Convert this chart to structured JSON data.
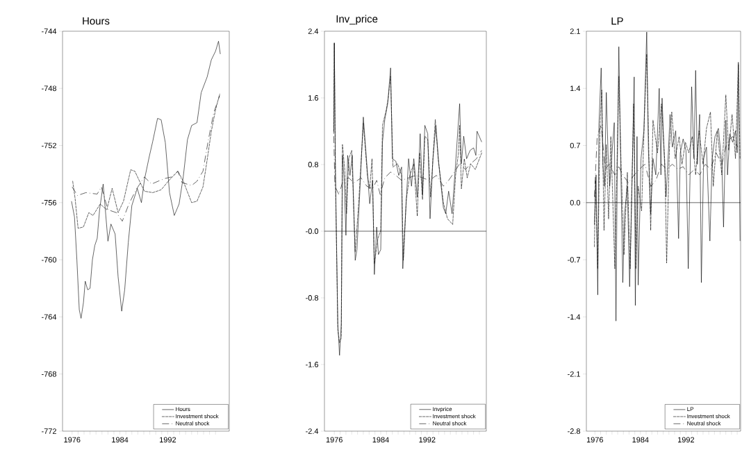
{
  "chart_data": [
    {
      "type": "line",
      "title": "Hours",
      "xlim": [
        1974.4,
        2002.3
      ],
      "ylim": [
        -772,
        -744
      ],
      "yticks": [
        -772,
        -768,
        -764,
        -760,
        -756,
        -752,
        -748,
        -744
      ],
      "xticks": [
        1976,
        {
          "value": 1977,
          "label": null
        },
        {
          "value": 1978,
          "label": null
        },
        {
          "value": 1979,
          "label": null
        },
        {
          "value": 1980,
          "label": null
        },
        {
          "value": 1981,
          "label": null
        },
        {
          "value": 1982,
          "label": null
        },
        {
          "value": 1983,
          "label": null
        },
        1984,
        {
          "value": 1985,
          "label": null
        },
        {
          "value": 1986,
          "label": null
        },
        {
          "value": 1987,
          "label": null
        },
        {
          "value": 1988,
          "label": null
        },
        {
          "value": 1989,
          "label": null
        },
        {
          "value": 1990,
          "label": null
        },
        {
          "value": 1991,
          "label": null
        },
        1992,
        {
          "value": 1993,
          "label": null
        },
        {
          "value": 1994,
          "label": null
        },
        {
          "value": 1995,
          "label": null
        },
        {
          "value": 1996,
          "label": null
        },
        {
          "value": 1997,
          "label": null
        },
        {
          "value": 1998,
          "label": null
        },
        {
          "value": 1999,
          "label": null
        },
        {
          "value": 2000,
          "label": null
        }
      ],
      "legend": "bottom right",
      "series": [
        {
          "name": "Hours",
          "color": "#000000",
          "line_style": "solid",
          "x": [
            1975.9,
            1976.4,
            1976.8,
            1977.2,
            1977.5,
            1977.9,
            1978.2,
            1978.6,
            1979.0,
            1979.4,
            1979.8,
            1980.2,
            1980.6,
            1981.2,
            1982.0,
            1982.5,
            1983.2,
            1983.7,
            1984.3,
            1984.8,
            1985.4,
            1986.0,
            1986.9,
            1987.6,
            1988.1,
            1988.9,
            1989.5,
            1990.3,
            1990.9,
            1991.6,
            1992.3,
            1993.1,
            1993.9,
            1994.6,
            1995.3,
            1996.0,
            1996.9,
            1997.6,
            1998.6,
            1999.3,
            2000.0,
            2000.5,
            2000.8
          ],
          "values": [
            -755.9,
            -757,
            -760,
            -763.5,
            -764.1,
            -763,
            -761.5,
            -762.1,
            -762,
            -760,
            -759,
            -758.5,
            -756.5,
            -754.7,
            -758.7,
            -757.5,
            -758.2,
            -761.2,
            -763.6,
            -762.1,
            -758.8,
            -756.2,
            -755.0,
            -756.0,
            -754.4,
            -752.8,
            -751.7,
            -750.1,
            -750.2,
            -751.8,
            -755.3,
            -756.9,
            -756.1,
            -754.2,
            -751.6,
            -750.6,
            -750.4,
            -748.3,
            -747.2,
            -746.0,
            -745.4,
            -744.7,
            -745.6
          ]
        },
        {
          "name": "Investment shock",
          "color": "#000000",
          "line_style": "dashed",
          "x": [
            1976.1,
            1976.5,
            1977.0,
            1977.9,
            1978.8,
            1979.5,
            1980.7,
            1981.8,
            1982.7,
            1983.7,
            1984.6,
            1985.8,
            1986.5,
            1987.4,
            1988.1,
            1989.5,
            1990.9,
            1992.3,
            1993.7,
            1994.6,
            1996.0,
            1996.9,
            1997.9,
            1998.6,
            1999.3,
            2000.0,
            2000.7
          ],
          "values": [
            -754.5,
            -755.7,
            -757.8,
            -757.7,
            -756.7,
            -756.9,
            -756.1,
            -756.5,
            -755.0,
            -756.7,
            -755.9,
            -753.7,
            -753.8,
            -754.6,
            -755.2,
            -755.3,
            -755.1,
            -754.4,
            -753.8,
            -754.5,
            -756.0,
            -755.9,
            -754.9,
            -753.0,
            -751.0,
            -749.5,
            -748.4
          ]
        },
        {
          "name": "Neutral shock",
          "color": "#000000",
          "line_style": "dashdot",
          "x": [
            1976.0,
            1976.9,
            1978.3,
            1980.2,
            1980.9,
            1982.0,
            1983.4,
            1984.4,
            1985.5,
            1986.7,
            1988.1,
            1989.3,
            1990.4,
            1991.6,
            1992.7,
            1993.7,
            1994.4,
            1996.0,
            1996.9,
            1997.9,
            1998.8,
            1999.7,
            2000.7
          ],
          "values": [
            -754.9,
            -755.5,
            -755.3,
            -755.4,
            -754.9,
            -756.5,
            -756.7,
            -757.3,
            -756.1,
            -755.1,
            -754.2,
            -754.7,
            -754.5,
            -754.3,
            -754.2,
            -753.8,
            -754.6,
            -754.8,
            -754.5,
            -753.8,
            -751.6,
            -749.7,
            -748.5
          ]
        }
      ]
    },
    {
      "type": "line",
      "title": "Inv_price",
      "xlim": [
        1974.3,
        2002.2
      ],
      "ylim": [
        -2.4,
        2.4
      ],
      "yticks": [
        -2.4,
        -1.6,
        -0.8,
        {
          "value": 0,
          "label": "-0.0"
        },
        0.8,
        1.6,
        2.4
      ],
      "xticks": [
        1976,
        {
          "value": 1977,
          "label": null
        },
        {
          "value": 1978,
          "label": null
        },
        {
          "value": 1979,
          "label": null
        },
        {
          "value": 1980,
          "label": null
        },
        {
          "value": 1981,
          "label": null
        },
        {
          "value": 1982,
          "label": null
        },
        {
          "value": 1983,
          "label": null
        },
        1984,
        {
          "value": 1985,
          "label": null
        },
        {
          "value": 1986,
          "label": null
        },
        {
          "value": 1987,
          "label": null
        },
        {
          "value": 1988,
          "label": null
        },
        {
          "value": 1989,
          "label": null
        },
        {
          "value": 1990,
          "label": null
        },
        {
          "value": 1991,
          "label": null
        },
        1992,
        {
          "value": 1993,
          "label": null
        },
        {
          "value": 1994,
          "label": null
        },
        {
          "value": 1995,
          "label": null
        },
        {
          "value": 1996,
          "label": null
        },
        {
          "value": 1997,
          "label": null
        },
        {
          "value": 1998,
          "label": null
        },
        {
          "value": 1999,
          "label": null
        },
        {
          "value": 2000,
          "label": null
        },
        {
          "value": 2001,
          "label": null
        }
      ],
      "legend": "bottom right",
      "ref_lines": [
        {
          "axis": "y",
          "value": 0,
          "color": "#000000"
        }
      ],
      "series": [
        {
          "name": "Invprice",
          "color": "#000000",
          "line_style": "solid",
          "x": [
            1975.9,
            1976.0,
            1976.2,
            1976.6,
            1976.9,
            1977.2,
            1977.4,
            1977.7,
            1978.0,
            1978.3,
            1978.7,
            1979.1,
            1979.6,
            1979.9,
            1980.4,
            1981.0,
            1981.6,
            1982.1,
            1982.6,
            1982.9,
            1983.3,
            1983.6,
            1984.0,
            1984.3,
            1984.7,
            1985.2,
            1985.7,
            1986.0,
            1986.6,
            1987.1,
            1987.6,
            1987.8,
            1988.3,
            1988.8,
            1989.3,
            1989.7,
            1990.3,
            1990.8,
            1991.2,
            1991.6,
            1992.1,
            1992.5,
            1993.0,
            1993.5,
            1994.0,
            1994.8,
            1995.2,
            1995.7,
            1996.3,
            1996.9,
            1997.6,
            1997.9,
            1998.3,
            1998.8,
            1999.4,
            2000.0,
            2000.4,
            2000.6,
            2001.4
          ],
          "values": [
            1.17,
            2.26,
            0.67,
            -1.11,
            -1.49,
            -1.11,
            0.91,
            0.61,
            -0.05,
            0.91,
            0.67,
            0.91,
            -0.35,
            -0.22,
            0.48,
            1.37,
            0.81,
            0.33,
            0.61,
            -0.52,
            0.05,
            -0.28,
            -0.22,
            1.07,
            1.34,
            1.53,
            1.96,
            0.87,
            0.84,
            0.67,
            0.77,
            -0.45,
            0.24,
            0.87,
            0.54,
            0.87,
            0.41,
            1.17,
            0.44,
            1.27,
            1.17,
            0.15,
            0.87,
            1.27,
            0.81,
            0.28,
            0.21,
            0.48,
            0.21,
            0.81,
            1.53,
            0.81,
            1.14,
            0.87,
            0.97,
            1.0,
            0.91,
            1.2,
            1.07
          ]
        },
        {
          "name": "Investment shock",
          "color": "#000000",
          "line_style": "dashed",
          "x": [
            1975.9,
            1976.0,
            1976.2,
            1976.6,
            1976.9,
            1977.2,
            1977.4,
            1977.8,
            1978.1,
            1978.5,
            1979.0,
            1979.6,
            1980.2,
            1981.0,
            1981.7,
            1982.1,
            1982.5,
            1982.9,
            1983.5,
            1984.0,
            1984.3,
            1984.9,
            1985.3,
            1985.7,
            1986.1,
            1986.9,
            1987.6,
            1987.9,
            1988.4,
            1989.0,
            1989.7,
            1990.3,
            1990.7,
            1991.2,
            1991.6,
            1992.1,
            1992.6,
            1993.4,
            1993.9,
            1994.8,
            1995.5,
            1996.4,
            1996.9,
            1997.4,
            1997.6,
            1997.9,
            1998.4,
            1998.9,
            1999.5,
            2000.3,
            2001.4
          ],
          "values": [
            1.2,
            2.26,
            0.61,
            -1.18,
            -1.34,
            -1.28,
            1.04,
            0.74,
            0.21,
            0.87,
            0.97,
            -0.25,
            0.34,
            1.3,
            0.67,
            0.51,
            0.87,
            -0.39,
            -0.09,
            0.01,
            1.27,
            1.44,
            1.6,
            1.86,
            0.77,
            0.81,
            0.67,
            -0.35,
            0.38,
            0.67,
            0.81,
            0.18,
            0.94,
            0.38,
            1.14,
            1.1,
            0.41,
            1.34,
            0.87,
            0.34,
            0.15,
            0.08,
            0.67,
            0.94,
            1.27,
            0.51,
            0.87,
            0.64,
            0.81,
            0.74,
            0.94
          ]
        },
        {
          "name": "Neutral shock",
          "color": "#000000",
          "line_style": "dashdot",
          "x": [
            1975.9,
            1976.1,
            1976.8,
            1977.5,
            1978.5,
            1979.4,
            1980.6,
            1981.6,
            1982.6,
            1983.3,
            1983.9,
            1984.7,
            1985.7,
            1986.6,
            1987.6,
            1988.8,
            1990.0,
            1991.2,
            1992.4,
            1993.6,
            1994.8,
            1995.7,
            1996.7,
            1997.6,
            1998.6,
            1999.5,
            2000.5,
            2001.4
          ],
          "values": [
            1.14,
            0.54,
            0.44,
            0.61,
            0.64,
            0.58,
            0.64,
            0.54,
            0.51,
            0.61,
            0.44,
            0.64,
            0.71,
            0.67,
            0.61,
            0.64,
            0.67,
            0.64,
            0.61,
            0.67,
            0.54,
            0.61,
            0.71,
            0.81,
            0.74,
            0.81,
            0.87,
            0.97
          ]
        }
      ]
    },
    {
      "type": "line",
      "title": "LP",
      "xlim": [
        1974.5,
        2001.6
      ],
      "ylim": [
        -2.8,
        2.1
      ],
      "yticks": [
        -2.8,
        -2.1,
        -1.4,
        -0.7,
        {
          "value": 0,
          "label": "0.0"
        },
        0.7,
        1.4,
        2.1
      ],
      "xticks": [
        1976,
        {
          "value": 1977,
          "label": null
        },
        {
          "value": 1978,
          "label": null
        },
        {
          "value": 1979,
          "label": null
        },
        {
          "value": 1980,
          "label": null
        },
        {
          "value": 1981,
          "label": null
        },
        {
          "value": 1982,
          "label": null
        },
        {
          "value": 1983,
          "label": null
        },
        1984,
        {
          "value": 1985,
          "label": null
        },
        {
          "value": 1986,
          "label": null
        },
        {
          "value": 1987,
          "label": null
        },
        {
          "value": 1988,
          "label": null
        },
        {
          "value": 1989,
          "label": null
        },
        {
          "value": 1990,
          "label": null
        },
        {
          "value": 1991,
          "label": null
        },
        1992,
        {
          "value": 1993,
          "label": null
        },
        {
          "value": 1994,
          "label": null
        },
        {
          "value": 1995,
          "label": null
        },
        {
          "value": 1996,
          "label": null
        },
        {
          "value": 1997,
          "label": null
        },
        {
          "value": 1998,
          "label": null
        },
        {
          "value": 1999,
          "label": null
        },
        {
          "value": 2000,
          "label": null
        },
        {
          "value": 2001,
          "label": null
        }
      ],
      "legend": "bottom right",
      "ref_lines": [
        {
          "axis": "y",
          "value": 0,
          "color": "#000000"
        }
      ],
      "series": [
        {
          "name": "LP",
          "color": "#000000",
          "line_style": "solid",
          "x": [
            1975.9,
            1976.2,
            1976.5,
            1976.7,
            1977.1,
            1977.4,
            1977.7,
            1978.0,
            1978.3,
            1978.6,
            1979.0,
            1979.4,
            1979.7,
            1979.9,
            1980.2,
            1980.5,
            1980.9,
            1981.2,
            1981.7,
            1982.1,
            1982.5,
            1982.9,
            1983.1,
            1983.4,
            1983.6,
            1984.1,
            1984.6,
            1985.1,
            1985.4,
            1985.8,
            1986.2,
            1986.7,
            1987.3,
            1987.6,
            1987.8,
            1988.2,
            1988.5,
            1988.9,
            1989.2,
            1989.6,
            1990.2,
            1990.7,
            1991.0,
            1991.5,
            1992.0,
            1992.4,
            1992.7,
            1993.0,
            1993.4,
            1993.7,
            1994.0,
            1994.4,
            1994.7,
            1995.1,
            1995.6,
            1996.2,
            1996.6,
            1997.1,
            1997.7,
            1998.3,
            1998.6,
            1999.0,
            1999.3,
            1999.7,
            2000.2,
            2000.7,
            2001.0,
            2001.2,
            2001.5
          ],
          "values": [
            -0.27,
            0.34,
            -1.13,
            0.95,
            1.65,
            0.47,
            0.2,
            1.35,
            0.61,
            0.2,
            0.61,
            0.98,
            -1.45,
            0.2,
            1.91,
            0.61,
            -0.98,
            -0.14,
            0.2,
            -1.03,
            0.2,
            1.54,
            -1.26,
            0.81,
            -1.01,
            0.54,
            0.88,
            2.09,
            0.64,
            -0.14,
            0.54,
            0.34,
            1.4,
            0.34,
            1.28,
            0.54,
            0.07,
            0.61,
            1.08,
            0.68,
            0.88,
            -0.44,
            0.61,
            0.78,
            0.64,
            -0.81,
            0.27,
            1.42,
            0.54,
            1.62,
            0.47,
            1.08,
            -0.98,
            0.54,
            0.68,
            -0.47,
            0.54,
            0.81,
            0.91,
            0.47,
            -0.3,
            1.01,
            0.34,
            0.84,
            0.74,
            0.88,
            0.61,
            1.72,
            -0.47
          ]
        },
        {
          "name": "Investment shock",
          "color": "#000000",
          "line_style": "dashed",
          "x": [
            1975.9,
            1976.1,
            1976.5,
            1976.9,
            1977.2,
            1977.6,
            1978.0,
            1978.4,
            1978.8,
            1979.5,
            1979.9,
            1980.2,
            1980.6,
            1981.1,
            1981.7,
            1982.2,
            1982.8,
            1983.2,
            1983.6,
            1984.2,
            1984.7,
            1985.1,
            1985.5,
            1985.8,
            1986.2,
            1987.0,
            1987.7,
            1988.3,
            1988.6,
            1989.1,
            1989.5,
            1990.1,
            1990.8,
            1991.3,
            1991.9,
            1992.5,
            1993.1,
            1993.7,
            1994.3,
            1995.0,
            1995.6,
            1996.3,
            1996.8,
            1997.5,
            1998.3,
            1999.0,
            1999.5,
            2000.1,
            2000.7,
            2001.2,
            2001.5
          ],
          "values": [
            -0.54,
            0.27,
            -0.81,
            0.95,
            1.38,
            -0.34,
            0.71,
            -0.2,
            0.81,
            -0.81,
            0.54,
            1.55,
            0.47,
            -0.64,
            0.37,
            -0.81,
            1.21,
            -0.81,
            0.2,
            -0.1,
            1.05,
            1.82,
            0.54,
            -0.34,
            1.01,
            0.61,
            1.21,
            0.47,
            -0.74,
            0.68,
            1.11,
            0.54,
            0.81,
            0.47,
            0.74,
            0.61,
            0.81,
            0.34,
            0.88,
            0.47,
            0.91,
            1.11,
            0.2,
            0.88,
            0.34,
            1.32,
            0.64,
            1.08,
            0.54,
            1.69,
            0.54
          ]
        },
        {
          "name": "Neutral shock",
          "color": "#000000",
          "line_style": "dashdot",
          "x": [
            1975.9,
            1976.4,
            1977.1,
            1977.8,
            1978.5,
            1979.5,
            1980.2,
            1980.9,
            1981.9,
            1982.9,
            1983.8,
            1984.8,
            1985.8,
            1986.7,
            1987.7,
            1988.6,
            1989.6,
            1990.6,
            1991.5,
            1992.5,
            1993.5,
            1994.4,
            1995.4,
            1996.3,
            1997.3,
            1998.3,
            1999.2,
            2000.2,
            2001.1
          ],
          "values": [
            0.07,
            0.81,
            0.95,
            0.41,
            0.47,
            0.34,
            0.44,
            0.34,
            0.24,
            0.34,
            0.41,
            0.47,
            0.2,
            0.27,
            0.47,
            0.41,
            0.47,
            0.41,
            0.44,
            0.34,
            0.41,
            0.34,
            0.47,
            0.41,
            0.61,
            0.47,
            0.74,
            0.81,
            0.68
          ]
        }
      ]
    }
  ]
}
